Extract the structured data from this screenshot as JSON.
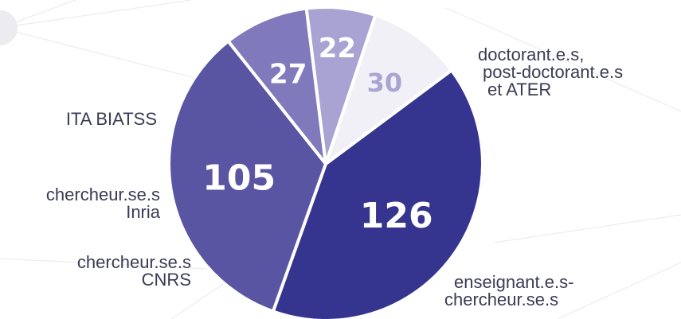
{
  "chart_data": {
    "type": "pie",
    "slices": [
      {
        "label_lines": [
          "doctorant.e.s,",
          "post-doctorant.e.s",
          "et ATER"
        ],
        "value": 126,
        "color": "#35358f",
        "value_color": "#ffffff"
      },
      {
        "label_lines": [
          "enseignant.e.s-",
          "chercheur.se.s"
        ],
        "value": 105,
        "color": "#5955a2",
        "value_color": "#ffffff"
      },
      {
        "label_lines": [
          "chercheur.se.s",
          "CNRS"
        ],
        "value": 27,
        "color": "#8079bb",
        "value_color": "#ffffff"
      },
      {
        "label_lines": [
          "chercheur.se.s",
          "Inria"
        ],
        "value": 22,
        "color": "#a8a3d2",
        "value_color": "#ffffff"
      },
      {
        "label_lines": [
          "ITA BIATSS"
        ],
        "value": 30,
        "color": "#f1f0f7",
        "value_color": "#a9a4d2"
      }
    ],
    "slice_border_color": "#ffffff"
  }
}
